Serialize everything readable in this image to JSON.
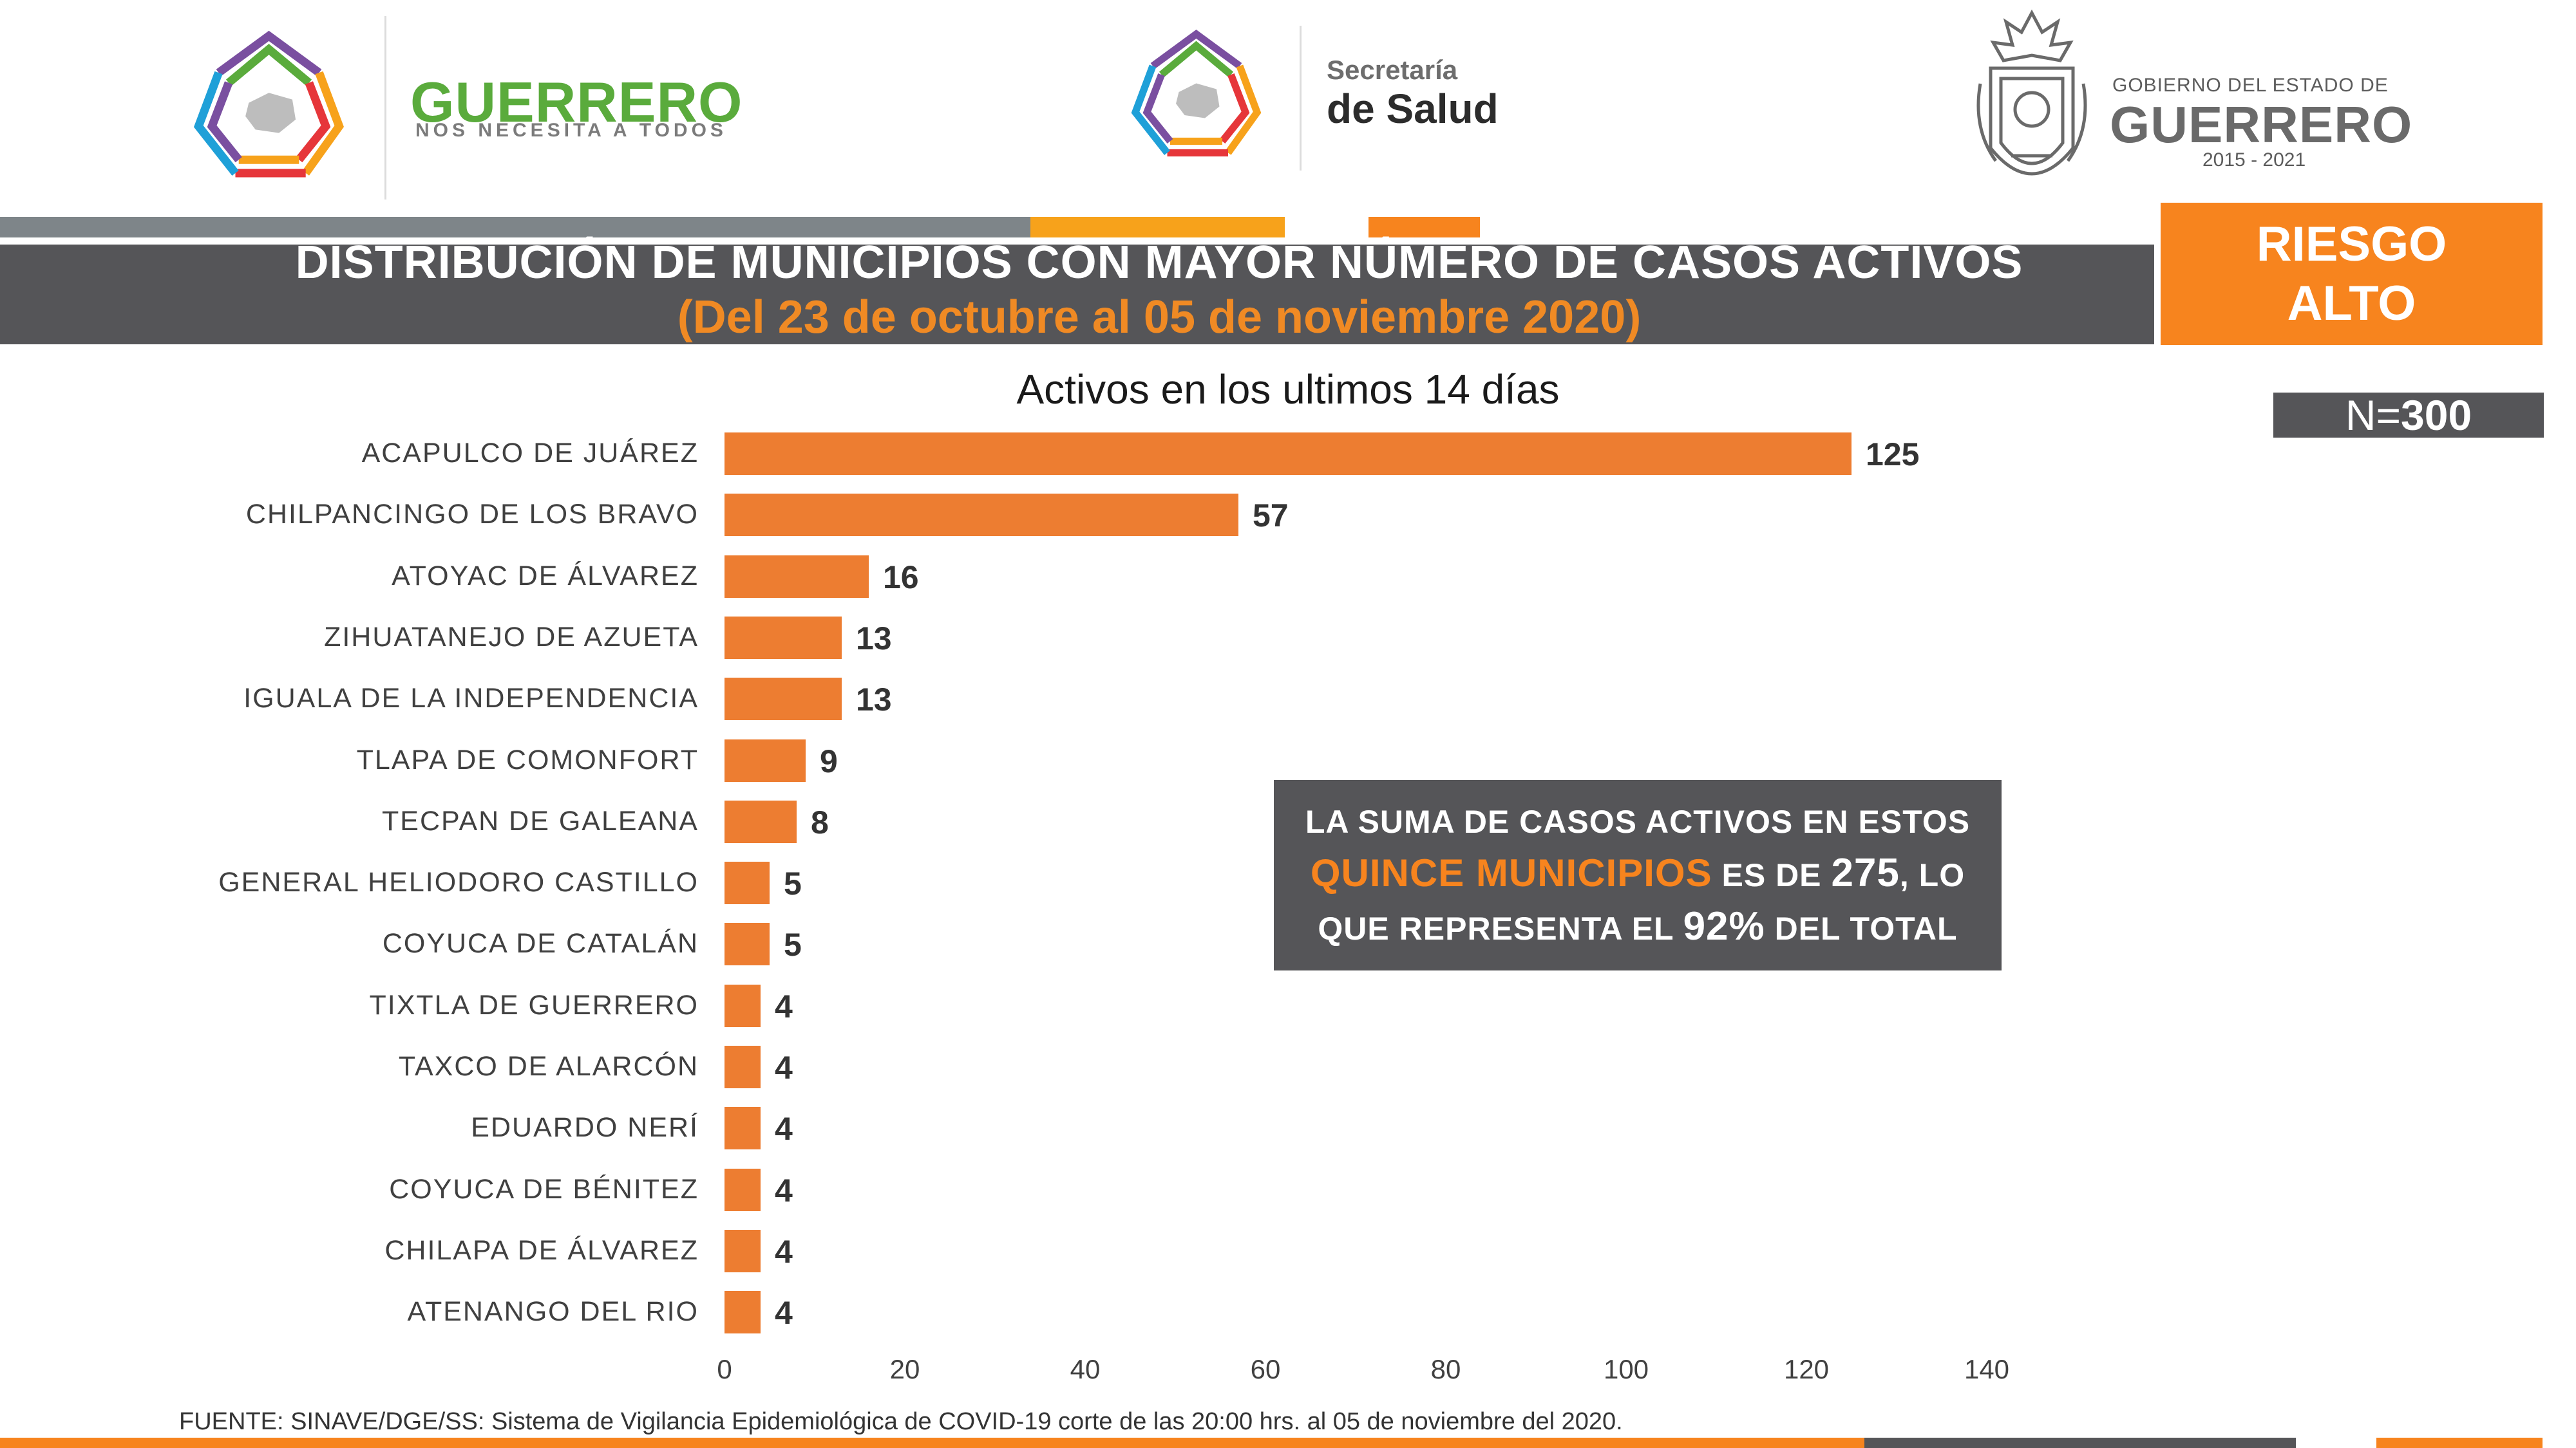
{
  "header": {
    "brand_title": "GUERRERO",
    "brand_subtitle": "NOS NECESITA A TODOS",
    "salud_line1": "Secretaría",
    "salud_line2": "de Salud",
    "gob_line1": "GOBIERNO DEL ESTADO DE",
    "gob_line2": "GUERRERO",
    "gob_years": "2015 - 2021"
  },
  "title": {
    "line1": "DISTRIBUCIÓN DE MUNICIPIOS CON MAYOR NÚMERO DE  CASOS ACTIVOS",
    "line2": "(Del 23 de octubre al 05 de noviembre 2020)"
  },
  "risk": {
    "line1": "RIESGO",
    "line2": "ALTO"
  },
  "total": {
    "prefix": "N=",
    "value": "300"
  },
  "callout": {
    "l1": "LA SUMA DE CASOS ACTIVOS EN ESTOS",
    "l2_highlight": "QUINCE MUNICIPIOS",
    "l2_mid": " ES DE ",
    "l2_num": "275",
    "l2_end": ", LO",
    "l3_start": "QUE REPRESENTA EL ",
    "l3_pct": "92%",
    "l3_end": " DEL TOTAL"
  },
  "source": "FUENTE: SINAVE/DGE/SS: Sistema de Vigilancia Epidemiológica de COVID-19 corte de las 20:00 hrs. al 05 de noviembre del 2020.",
  "colors": {
    "bar": "#ed7d31",
    "accent_orange": "#f7841e",
    "dark_band": "#555558",
    "brand_green": "#5aab3c"
  },
  "chart_data": {
    "type": "bar",
    "orientation": "horizontal",
    "title": "Activos en los ultimos 14 días",
    "categories": [
      "ACAPULCO DE JUÁREZ",
      "CHILPANCINGO DE LOS BRAVO",
      "ATOYAC DE ÁLVAREZ",
      "ZIHUATANEJO DE AZUETA",
      "IGUALA DE LA INDEPENDENCIA",
      "TLAPA DE COMONFORT",
      "TECPAN DE GALEANA",
      "GENERAL HELIODORO CASTILLO",
      "COYUCA DE CATALÁN",
      "TIXTLA DE GUERRERO",
      "TAXCO DE ALARCÓN",
      "EDUARDO NERÍ",
      "COYUCA DE BÉNITEZ",
      "CHILAPA DE ÁLVAREZ",
      "ATENANGO DEL RIO"
    ],
    "values": [
      125,
      57,
      16,
      13,
      13,
      9,
      8,
      5,
      5,
      4,
      4,
      4,
      4,
      4,
      4
    ],
    "xlim": [
      0,
      140
    ],
    "xticks": [
      "0",
      "20",
      "40",
      "60",
      "80",
      "100",
      "120",
      "140"
    ],
    "grid": false,
    "data_labels": true
  }
}
